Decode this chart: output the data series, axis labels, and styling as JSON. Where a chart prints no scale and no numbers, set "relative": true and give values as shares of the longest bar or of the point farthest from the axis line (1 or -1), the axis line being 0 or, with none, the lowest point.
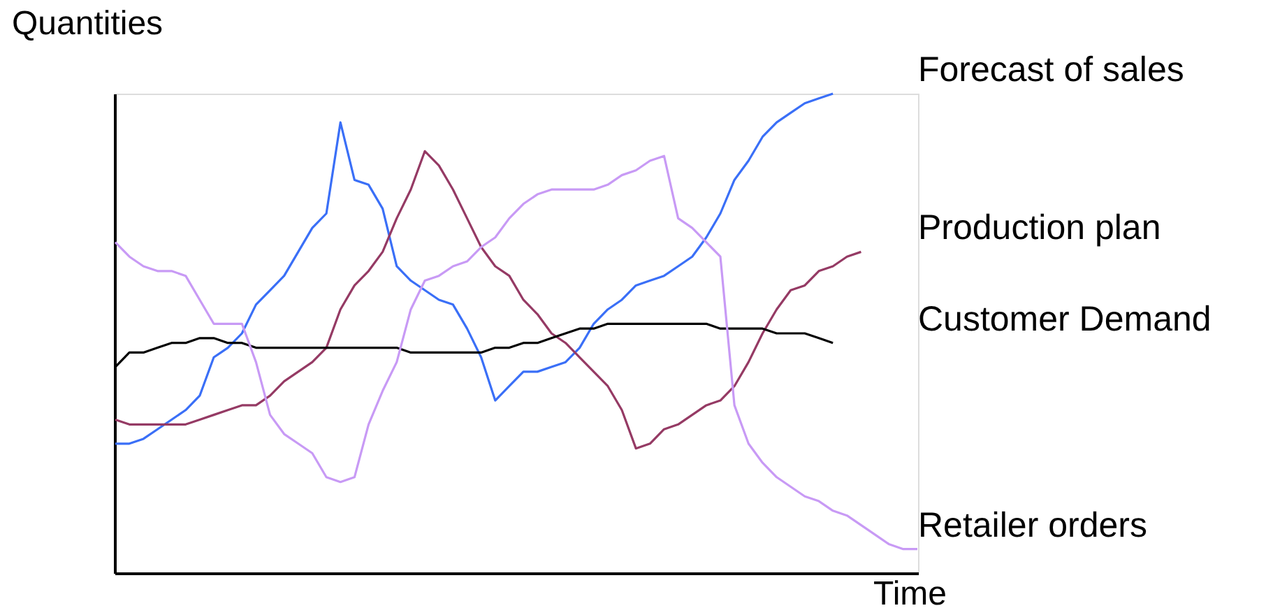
{
  "chart_data": {
    "type": "line",
    "relative": true,
    "ylabel": "Quantities",
    "xlabel": "Time",
    "categories": [
      null,
      null,
      null,
      null,
      null,
      null,
      null,
      null,
      null,
      null,
      null,
      null,
      null,
      null,
      null,
      null,
      null,
      null,
      null,
      null,
      null,
      null,
      null,
      null,
      null,
      null,
      null,
      null,
      null,
      null,
      null,
      null,
      null,
      null,
      null,
      null,
      null,
      null,
      null,
      null,
      null,
      null,
      null,
      null,
      null,
      null,
      null,
      null,
      null,
      null,
      null,
      null,
      null,
      null,
      null,
      null,
      null,
      null
    ],
    "series": [
      {
        "name": "Forecast of sales",
        "color": "#3a6ff7",
        "values": [
          0.27,
          0.27,
          0.28,
          0.3,
          0.32,
          0.34,
          0.37,
          0.45,
          0.47,
          0.5,
          0.56,
          0.59,
          0.62,
          0.67,
          0.72,
          0.75,
          0.94,
          0.82,
          0.81,
          0.76,
          0.64,
          0.61,
          0.59,
          0.57,
          0.56,
          0.51,
          0.45,
          0.36,
          0.39,
          0.42,
          0.42,
          0.43,
          0.44,
          0.47,
          0.52,
          0.55,
          0.57,
          0.6,
          0.61,
          0.62,
          0.64,
          0.66,
          0.7,
          0.75,
          0.82,
          0.86,
          0.91,
          0.94,
          0.96,
          0.98,
          0.99,
          1.0,
          null,
          null,
          null,
          null,
          null,
          null
        ]
      },
      {
        "name": "Production plan",
        "color": "#953a64",
        "values": [
          0.32,
          0.31,
          0.31,
          0.31,
          0.31,
          0.31,
          0.32,
          0.33,
          0.34,
          0.35,
          0.35,
          0.37,
          0.4,
          0.42,
          0.44,
          0.47,
          0.55,
          0.6,
          0.63,
          0.67,
          0.74,
          0.8,
          0.88,
          0.85,
          0.8,
          0.74,
          0.68,
          0.64,
          0.62,
          0.57,
          0.54,
          0.5,
          0.48,
          0.45,
          0.42,
          0.39,
          0.34,
          0.26,
          0.27,
          0.3,
          0.31,
          0.33,
          0.35,
          0.36,
          0.39,
          0.44,
          0.5,
          0.55,
          0.59,
          0.6,
          0.63,
          0.64,
          0.66,
          0.67,
          null,
          null,
          null,
          null
        ]
      },
      {
        "name": "Customer Demand",
        "color": "#000000",
        "values": [
          0.43,
          0.46,
          0.46,
          0.47,
          0.48,
          0.48,
          0.49,
          0.49,
          0.48,
          0.48,
          0.47,
          0.47,
          0.47,
          0.47,
          0.47,
          0.47,
          0.47,
          0.47,
          0.47,
          0.47,
          0.47,
          0.46,
          0.46,
          0.46,
          0.46,
          0.46,
          0.46,
          0.47,
          0.47,
          0.48,
          0.48,
          0.49,
          0.5,
          0.51,
          0.51,
          0.52,
          0.52,
          0.52,
          0.52,
          0.52,
          0.52,
          0.52,
          0.52,
          0.51,
          0.51,
          0.51,
          0.51,
          0.5,
          0.5,
          0.5,
          0.49,
          0.48,
          null,
          null,
          null,
          null,
          null,
          null
        ]
      },
      {
        "name": "Retailer orders",
        "color": "#c89af5",
        "values": [
          0.69,
          0.66,
          0.64,
          0.63,
          0.63,
          0.62,
          0.57,
          0.52,
          0.52,
          0.52,
          0.44,
          0.33,
          0.29,
          0.27,
          0.25,
          0.2,
          0.19,
          0.2,
          0.31,
          0.38,
          0.44,
          0.55,
          0.61,
          0.62,
          0.64,
          0.65,
          0.68,
          0.7,
          0.74,
          0.77,
          0.79,
          0.8,
          0.8,
          0.8,
          0.8,
          0.81,
          0.83,
          0.84,
          0.86,
          0.87,
          0.74,
          0.72,
          0.69,
          0.66,
          0.35,
          0.27,
          0.23,
          0.2,
          0.18,
          0.16,
          0.15,
          0.13,
          0.12,
          0.1,
          0.08,
          0.06,
          0.05,
          0.05
        ]
      }
    ],
    "tick_labels": false,
    "grid": false,
    "legend": false,
    "marker": "none",
    "line_style": "solid"
  }
}
